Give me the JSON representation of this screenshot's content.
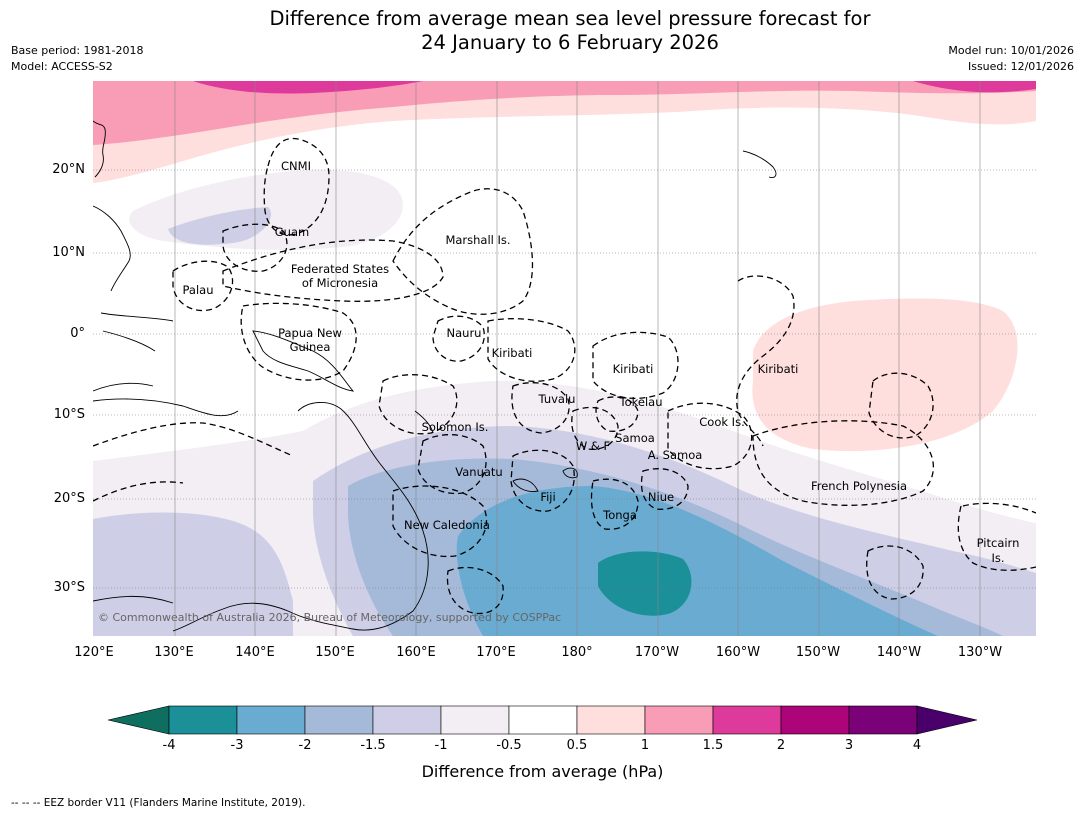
{
  "title_line1": "Difference from average mean sea level pressure forecast for",
  "title_line2": "24 January to 6 February 2026",
  "base_period": "Base period: 1981-2018",
  "model": "Model: ACCESS-S2",
  "model_run": "Model run: 10/01/2026",
  "issued": "Issued: 12/01/2026",
  "lat_labels": [
    "20°N",
    "10°N",
    "0°",
    "10°S",
    "20°S",
    "30°S"
  ],
  "lon_labels": [
    "120°E",
    "130°E",
    "140°E",
    "150°E",
    "160°E",
    "170°E",
    "180°",
    "170°W",
    "160°W",
    "150°W",
    "140°W",
    "130°W"
  ],
  "regions": [
    "CNMI",
    "Guam",
    "Marshall Is.",
    "Federated States",
    "of Micronesia",
    "Palau",
    "Papua New",
    "Guinea",
    "Nauru",
    "Kiribati",
    "Kiribati",
    "Kiribati",
    "Tuvalu",
    "Tokelau",
    "Solomon Is.",
    "Cook Is.",
    "Samoa",
    "W & F",
    "A. Samoa",
    "Vanuatu",
    "Fiji",
    "Niue",
    "French Polynesia",
    "Tonga",
    "New Caledonia",
    "Pitcairn",
    "Is."
  ],
  "copyright": "© Commonwealth of Australia 2026, Bureau of Meteorology, supported by COSPPac",
  "colorbar": {
    "labels": [
      "-4",
      "-3",
      "-2",
      "-1.5",
      "-1",
      "-0.5",
      "0.5",
      "1",
      "1.5",
      "2",
      "3",
      "4"
    ],
    "colors": [
      "#0e6e60",
      "#1b9099",
      "#6aabd2",
      "#a5b9d9",
      "#cecfe6",
      "#f2eef4",
      "#ffffff",
      "#ffdede",
      "#f99cb5",
      "#dd3a9c",
      "#ac0479",
      "#7a0178",
      "#4a006a"
    ],
    "title": "Difference from average (hPa)"
  },
  "footer": "--  --  -- EEZ border V11 (Flanders Marine Institute, 2019)."
}
